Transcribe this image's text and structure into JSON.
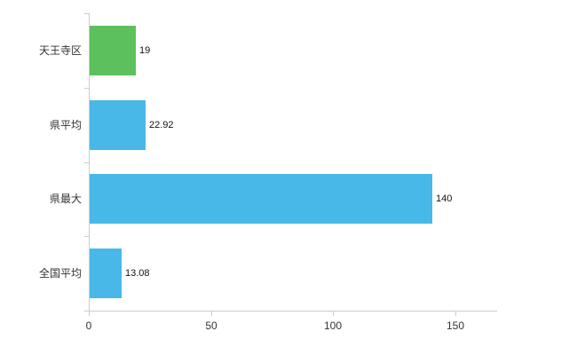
{
  "chart_data": {
    "type": "bar",
    "orientation": "horizontal",
    "title": "",
    "xlabel": "",
    "ylabel": "",
    "categories": [
      "天王寺区",
      "県平均",
      "県最大",
      "全国平均"
    ],
    "values": [
      19,
      22.92,
      140,
      13.08
    ],
    "value_labels": [
      "19",
      "22.92",
      "140",
      "13.08"
    ],
    "bar_colors": [
      "#5cc05c",
      "#48b8e8",
      "#48b8e8",
      "#48b8e8"
    ],
    "x_ticks": [
      0,
      50,
      100,
      150
    ],
    "x_tick_labels": [
      "0",
      "50",
      "100",
      "150"
    ],
    "xlim": [
      0,
      167
    ],
    "grid": false,
    "legend": false
  },
  "colors": {
    "axis": "#cccccc",
    "text": "#333333",
    "background": "#ffffff"
  }
}
